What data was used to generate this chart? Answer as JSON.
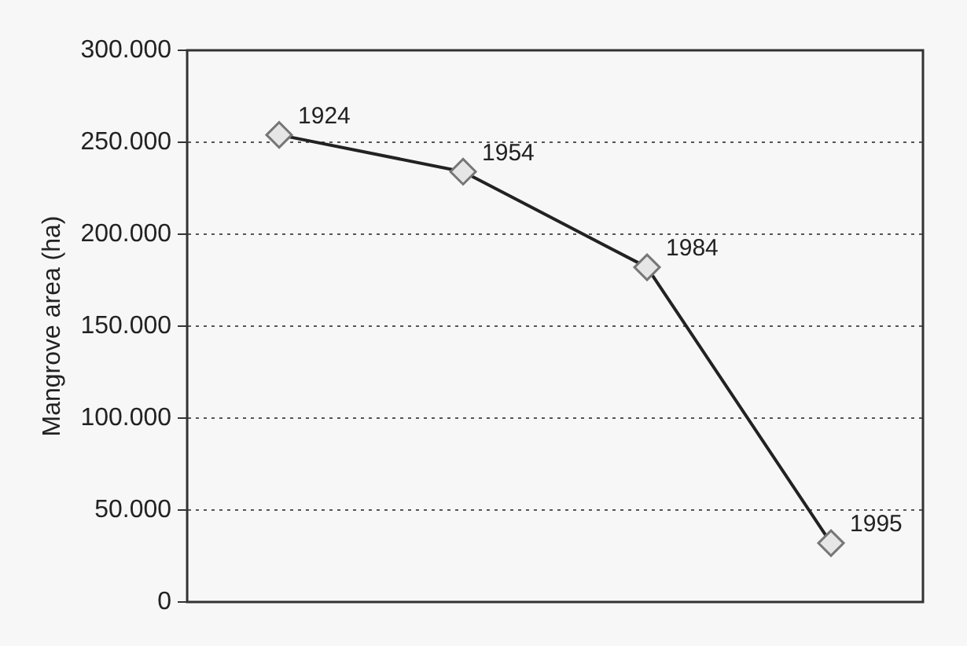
{
  "chart_data": {
    "type": "line",
    "ylabel": "Mangrove area (ha)",
    "categories": [
      null,
      null,
      null,
      null
    ],
    "series": [
      {
        "color": "#222222",
        "values": [
          254000,
          234000,
          182000,
          32000
        ]
      }
    ],
    "ylim": [
      0,
      300000
    ],
    "yticks": [
      {
        "value": 0,
        "label": "0"
      },
      {
        "value": 50000,
        "label": "50.000"
      },
      {
        "value": 100000,
        "label": "100.000"
      },
      {
        "value": 150000,
        "label": "150.000"
      },
      {
        "value": 200000,
        "label": "200.000"
      },
      {
        "value": 250000,
        "label": "250.000"
      },
      {
        "value": 300000,
        "label": "300.000"
      }
    ],
    "tick_labels": "y",
    "grid": "y",
    "marker": "diamond",
    "line_style": "solid",
    "annotations": [
      "1924",
      "1954",
      "1984",
      "1995"
    ]
  }
}
